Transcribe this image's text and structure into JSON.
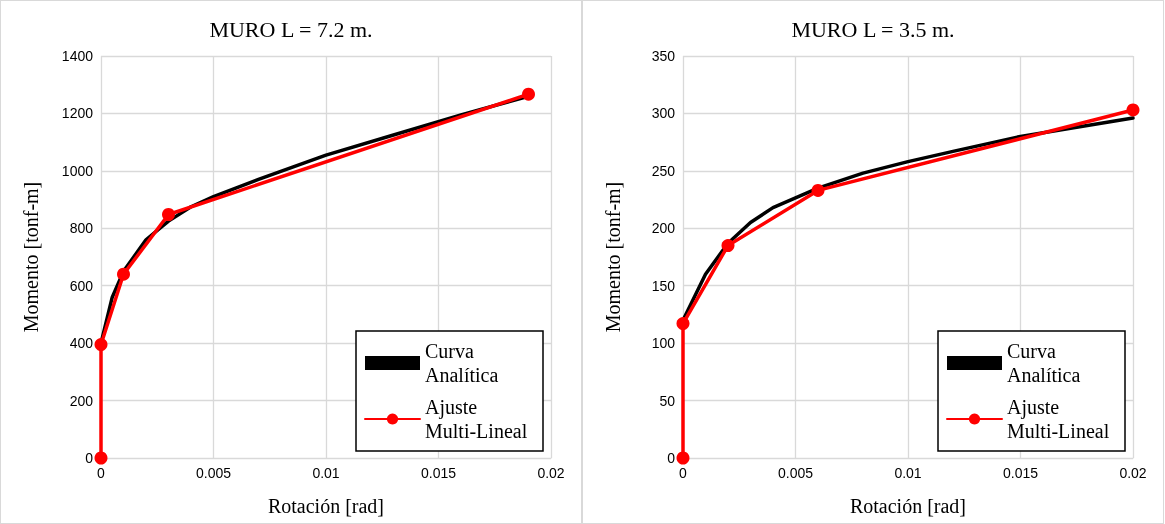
{
  "chart_data": [
    {
      "type": "line",
      "title": "MURO L = 7.2 m.",
      "xlabel": "Rotación [rad]",
      "ylabel": "Momento [tonf-m]",
      "xlim": [
        0,
        0.02
      ],
      "xticks": [
        0,
        0.005,
        0.01,
        0.015,
        0.02
      ],
      "ylim": [
        0,
        1400
      ],
      "yticks": [
        0,
        200,
        400,
        600,
        800,
        1000,
        1200,
        1400
      ],
      "grid": true,
      "legend": "bottom right",
      "series": [
        {
          "name": "Curva Analítica",
          "color": "#000000",
          "marker": "none",
          "x": [
            0,
            0.0005,
            0.001,
            0.002,
            0.003,
            0.004,
            0.005,
            0.007,
            0.01,
            0.013,
            0.016,
            0.019
          ],
          "values": [
            400,
            560,
            650,
            760,
            825,
            875,
            910,
            970,
            1055,
            1125,
            1195,
            1260
          ]
        },
        {
          "name": "Ajuste Multi-Lineal",
          "color": "#ff0000",
          "marker": "circle",
          "x": [
            0,
            0,
            0.001,
            0.003,
            0.019
          ],
          "values": [
            0,
            395,
            640,
            848,
            1267
          ]
        }
      ]
    },
    {
      "type": "line",
      "title": "MURO L = 3.5 m.",
      "xlabel": "Rotación [rad]",
      "ylabel": "Momento [tonf-m]",
      "xlim": [
        0,
        0.02
      ],
      "xticks": [
        0,
        0.005,
        0.01,
        0.015,
        0.02
      ],
      "ylim": [
        0,
        350
      ],
      "yticks": [
        0,
        50,
        100,
        150,
        200,
        250,
        300,
        350
      ],
      "grid": true,
      "legend": "bottom right",
      "series": [
        {
          "name": "Curva Analítica",
          "color": "#000000",
          "marker": "none",
          "x": [
            0,
            0.001,
            0.002,
            0.003,
            0.004,
            0.006,
            0.008,
            0.01,
            0.012,
            0.015,
            0.02
          ],
          "values": [
            120,
            160,
            187,
            205,
            218,
            235,
            248,
            258,
            267,
            280,
            296
          ]
        },
        {
          "name": "Ajuste Multi-Lineal",
          "color": "#ff0000",
          "marker": "circle",
          "x": [
            0,
            0,
            0.002,
            0.006,
            0.02
          ],
          "values": [
            0,
            117,
            185,
            233,
            303
          ]
        }
      ]
    }
  ]
}
